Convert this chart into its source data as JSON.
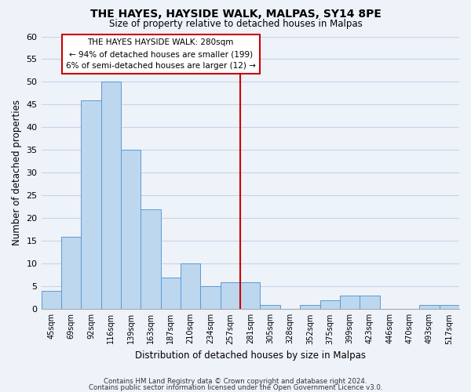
{
  "title": "THE HAYES, HAYSIDE WALK, MALPAS, SY14 8PE",
  "subtitle": "Size of property relative to detached houses in Malpas",
  "xlabel": "Distribution of detached houses by size in Malpas",
  "ylabel": "Number of detached properties",
  "bin_labels": [
    "45sqm",
    "69sqm",
    "92sqm",
    "116sqm",
    "139sqm",
    "163sqm",
    "187sqm",
    "210sqm",
    "234sqm",
    "257sqm",
    "281sqm",
    "305sqm",
    "328sqm",
    "352sqm",
    "375sqm",
    "399sqm",
    "423sqm",
    "446sqm",
    "470sqm",
    "493sqm",
    "517sqm"
  ],
  "bar_values": [
    4,
    16,
    46,
    50,
    35,
    22,
    7,
    10,
    5,
    6,
    6,
    1,
    0,
    1,
    2,
    3,
    3,
    0,
    0,
    1,
    1
  ],
  "bar_color": "#bdd7ee",
  "bar_edge_color": "#5b9bd5",
  "vline_x_index": 10,
  "vline_color": "#cc0000",
  "ylim": [
    0,
    60
  ],
  "yticks": [
    0,
    5,
    10,
    15,
    20,
    25,
    30,
    35,
    40,
    45,
    50,
    55,
    60
  ],
  "annotation_title": "THE HAYES HAYSIDE WALK: 280sqm",
  "annotation_line1": "← 94% of detached houses are smaller (199)",
  "annotation_line2": "6% of semi-detached houses are larger (12) →",
  "annotation_box_color": "#ffffff",
  "annotation_box_edge": "#cc0000",
  "footer1": "Contains HM Land Registry data © Crown copyright and database right 2024.",
  "footer2": "Contains public sector information licensed under the Open Government Licence v3.0.",
  "grid_color": "#c8d4e8",
  "background_color": "#eef2f9"
}
